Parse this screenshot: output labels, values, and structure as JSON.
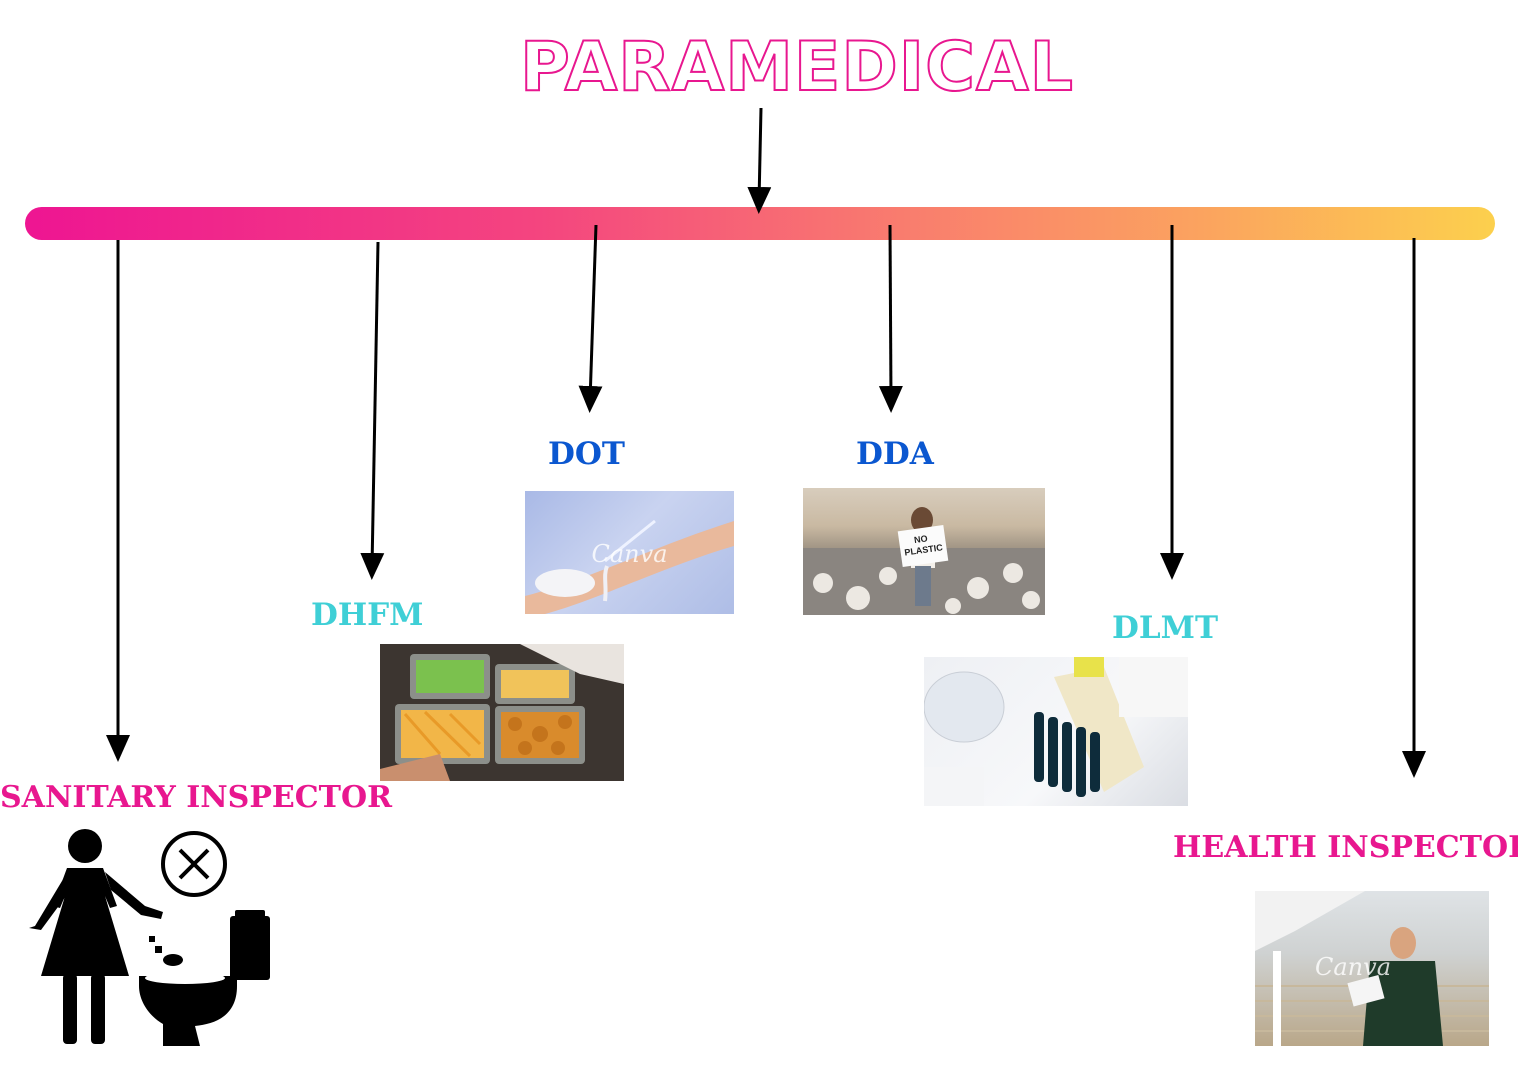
{
  "title": "PARAMEDICAL",
  "branches": [
    {
      "id": "sanitary",
      "label": "SANITARY INSPECTOR"
    },
    {
      "id": "dhfm",
      "label": "DHFM"
    },
    {
      "id": "dot",
      "label": "DOT"
    },
    {
      "id": "dda",
      "label": "DDA"
    },
    {
      "id": "dlmt",
      "label": "DLMT"
    },
    {
      "id": "health",
      "label": "HEALTH INSPECTOR"
    }
  ],
  "photos": {
    "dot_watermark": "Canva",
    "dda_sign": "NO PLASTIC",
    "health_watermark": "Canva"
  },
  "colors": {
    "accent_pink": "#e8178f",
    "label_blue": "#0b57d0",
    "label_cyan": "#3fcfd6",
    "bar_start": "#ee1592",
    "bar_end": "#fcd04d"
  },
  "icons": [
    "no-littering-toilet-icon",
    "cross-circle-icon"
  ]
}
